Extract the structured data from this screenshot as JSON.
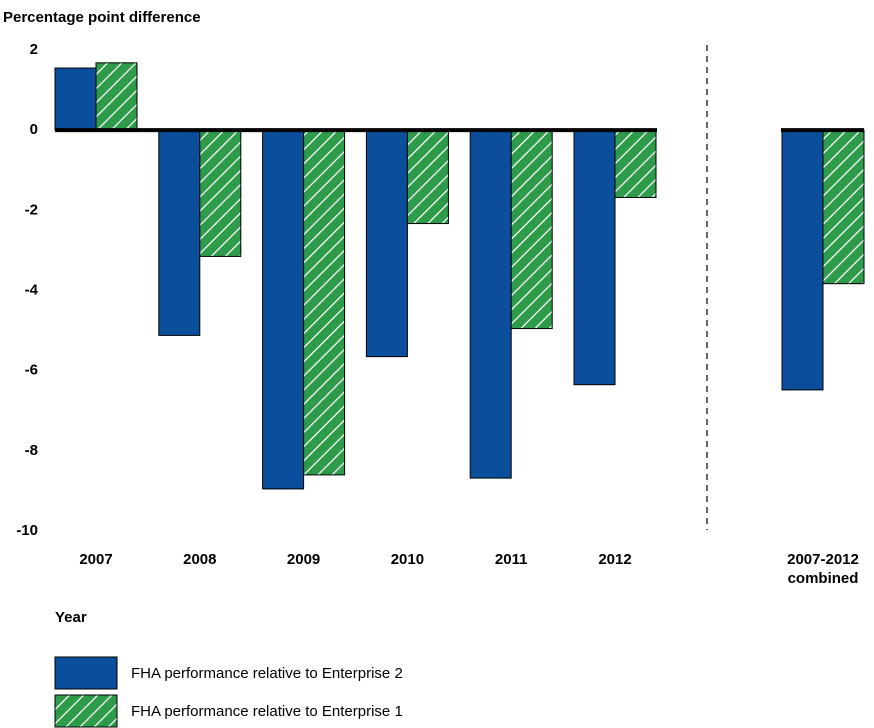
{
  "chart_data": {
    "type": "bar",
    "y_label": "Percentage point difference",
    "x_label": "Year",
    "categories": [
      "2007",
      "2008",
      "2009",
      "2010",
      "2011",
      "2012",
      "2007-2012 combined"
    ],
    "series": [
      {
        "name": "FHA performance relative to Enterprise 2",
        "color": "#0b4f9c",
        "values": [
          1.55,
          -5.12,
          -8.95,
          -5.65,
          -8.68,
          -6.35,
          -6.48
        ]
      },
      {
        "name": "FHA performance relative to Enterprise 1",
        "color": "#2e9b4a",
        "pattern": "hatch",
        "values": [
          1.68,
          -3.15,
          -8.6,
          -2.33,
          -4.95,
          -1.68,
          -3.83
        ]
      }
    ],
    "ylim": [
      -10,
      2
    ],
    "yticks": [
      2,
      0,
      -2,
      -4,
      -6,
      -8,
      -10
    ],
    "grid": false
  }
}
